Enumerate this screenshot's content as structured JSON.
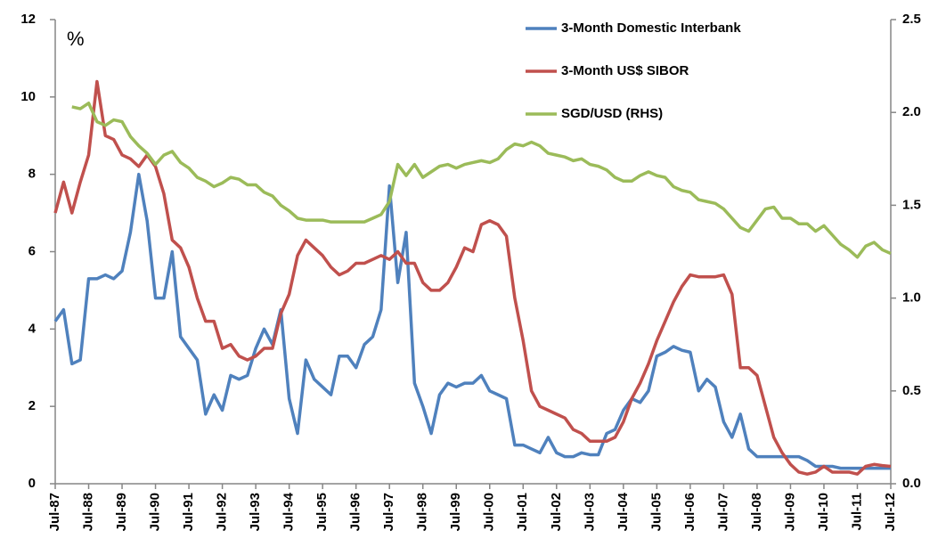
{
  "chart_data": {
    "type": "line",
    "y_label": "%",
    "legend": "upper right",
    "categories": [
      "Jul-87",
      null,
      null,
      null,
      "Jul-88",
      null,
      null,
      null,
      "Jul-89",
      null,
      null,
      null,
      "Jul-90",
      null,
      null,
      null,
      "Jul-91",
      null,
      null,
      null,
      "Jul-92",
      null,
      null,
      null,
      "Jul-93",
      null,
      null,
      null,
      "Jul-94",
      null,
      null,
      null,
      "Jul-95",
      null,
      null,
      null,
      "Jul-96",
      null,
      null,
      null,
      "Jul-97",
      null,
      null,
      null,
      "Jul-98",
      null,
      null,
      null,
      "Jul-99",
      null,
      null,
      null,
      "Jul-00",
      null,
      null,
      null,
      "Jul-01",
      null,
      null,
      null,
      "Jul-02",
      null,
      null,
      null,
      "Jul-03",
      null,
      null,
      null,
      "Jul-04",
      null,
      null,
      null,
      "Jul-05",
      null,
      null,
      null,
      "Jul-06",
      null,
      null,
      null,
      "Jul-07",
      null,
      null,
      null,
      "Jul-08",
      null,
      null,
      null,
      "Jul-09",
      null,
      null,
      null,
      "Jul-10",
      null,
      null,
      null,
      "Jul-11",
      null,
      null,
      null,
      "Jul-12"
    ],
    "series": [
      {
        "name": "3-Month Domestic Interbank",
        "color": "#4f81bd",
        "values": [
          4.2,
          4.5,
          3.1,
          3.2,
          5.3,
          5.3,
          5.4,
          5.3,
          5.5,
          6.5,
          8.0,
          6.8,
          4.8,
          4.8,
          6.0,
          3.8,
          3.5,
          3.2,
          1.8,
          2.3,
          1.9,
          2.8,
          2.7,
          2.8,
          3.5,
          4.0,
          3.6,
          4.5,
          2.2,
          1.3,
          3.2,
          2.7,
          2.5,
          2.3,
          3.3,
          3.3,
          3.0,
          3.6,
          3.8,
          4.5,
          7.7,
          5.2,
          6.5,
          2.6,
          2.0,
          1.3,
          2.3,
          2.6,
          2.5,
          2.6,
          2.6,
          2.8,
          2.4,
          2.3,
          2.2,
          1.0,
          1.0,
          0.9,
          0.8,
          1.2,
          0.8,
          0.7,
          0.7,
          0.8,
          0.75,
          0.75,
          1.3,
          1.4,
          1.9,
          2.2,
          2.1,
          2.4,
          3.3,
          3.4,
          3.55,
          3.45,
          3.4,
          2.4,
          2.7,
          2.5,
          1.6,
          1.2,
          1.8,
          0.9,
          0.7,
          0.7,
          0.7,
          0.7,
          0.7,
          0.7,
          0.6,
          0.45,
          0.45,
          0.45,
          0.4,
          0.4,
          0.4,
          0.4,
          0.4,
          0.4,
          0.4
        ]
      },
      {
        "name": "3-Month US$ SIBOR",
        "color": "#c0504d",
        "values": [
          7.0,
          7.8,
          7.0,
          7.8,
          8.5,
          10.4,
          9.0,
          8.9,
          8.5,
          8.4,
          8.2,
          8.5,
          8.2,
          7.5,
          6.3,
          6.1,
          5.6,
          4.8,
          4.2,
          4.2,
          3.5,
          3.6,
          3.3,
          3.2,
          3.3,
          3.5,
          3.5,
          4.4,
          4.9,
          5.9,
          6.3,
          6.1,
          5.9,
          5.6,
          5.4,
          5.5,
          5.7,
          5.7,
          5.8,
          5.9,
          5.8,
          6.0,
          5.7,
          5.7,
          5.2,
          5.0,
          5.0,
          5.2,
          5.6,
          6.1,
          6.0,
          6.7,
          6.8,
          6.7,
          6.4,
          4.8,
          3.7,
          2.4,
          2.0,
          1.9,
          1.8,
          1.7,
          1.4,
          1.3,
          1.1,
          1.1,
          1.1,
          1.2,
          1.6,
          2.2,
          2.6,
          3.1,
          3.7,
          4.2,
          4.7,
          5.1,
          5.4,
          5.35,
          5.35,
          5.35,
          5.4,
          4.9,
          3.0,
          3.0,
          2.8,
          2.0,
          1.2,
          0.8,
          0.5,
          0.3,
          0.25,
          0.3,
          0.45,
          0.3,
          0.3,
          0.3,
          0.25,
          0.45,
          0.5,
          0.47,
          0.45
        ]
      },
      {
        "name": "SGD/USD (RHS)",
        "color": "#9bbb59",
        "axis": "y2",
        "values": [
          null,
          null,
          2.03,
          2.02,
          2.05,
          1.95,
          1.93,
          1.96,
          1.95,
          1.87,
          1.82,
          1.78,
          1.72,
          1.77,
          1.79,
          1.73,
          1.7,
          1.65,
          1.63,
          1.6,
          1.62,
          1.65,
          1.64,
          1.61,
          1.61,
          1.57,
          1.55,
          1.5,
          1.47,
          1.43,
          1.42,
          1.42,
          1.42,
          1.41,
          1.41,
          1.41,
          1.41,
          1.41,
          1.43,
          1.45,
          1.52,
          1.72,
          1.66,
          1.72,
          1.65,
          1.68,
          1.71,
          1.72,
          1.7,
          1.72,
          1.73,
          1.74,
          1.73,
          1.75,
          1.8,
          1.83,
          1.82,
          1.84,
          1.82,
          1.78,
          1.77,
          1.76,
          1.74,
          1.75,
          1.72,
          1.71,
          1.69,
          1.65,
          1.63,
          1.63,
          1.66,
          1.68,
          1.66,
          1.65,
          1.6,
          1.58,
          1.57,
          1.53,
          1.52,
          1.51,
          1.48,
          1.43,
          1.38,
          1.36,
          1.42,
          1.48,
          1.49,
          1.43,
          1.43,
          1.4,
          1.4,
          1.36,
          1.39,
          1.34,
          1.29,
          1.26,
          1.22,
          1.28,
          1.3,
          1.26,
          1.24
        ]
      }
    ],
    "ylim": [
      0,
      12
    ],
    "yticks": [
      0,
      2,
      4,
      6,
      8,
      10,
      12
    ],
    "y2lim": [
      0,
      2.5
    ],
    "y2ticks": [
      {
        "value": 0,
        "label": "0.0"
      },
      0.5,
      {
        "value": 1,
        "label": "1.0"
      },
      1.5,
      {
        "value": 2,
        "label": "2.0"
      },
      2.5
    ],
    "grid": false
  }
}
